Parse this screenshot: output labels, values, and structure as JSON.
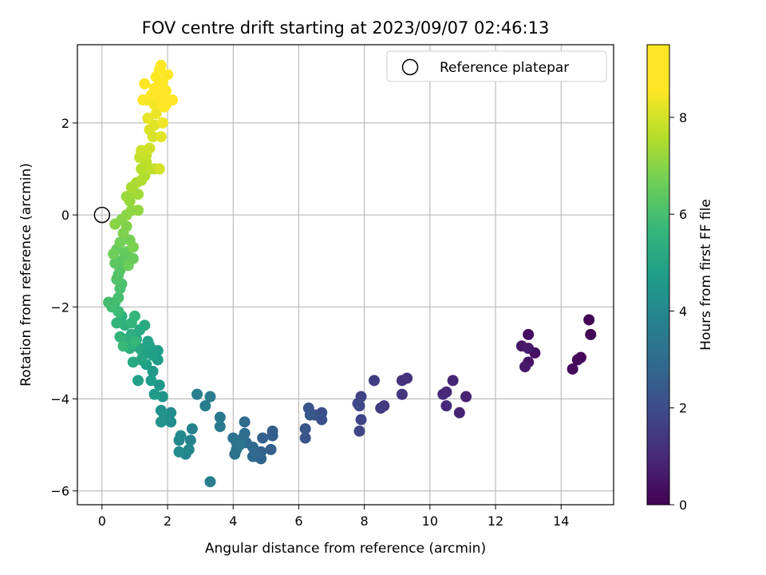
{
  "chart_data": {
    "type": "scatter",
    "title": "FOV centre drift starting at 2023/09/07 02:46:13",
    "xlabel": "Angular distance from reference (arcmin)",
    "ylabel": "Rotation from reference (arcmin)",
    "xlim": [
      -0.75,
      15.6
    ],
    "ylim": [
      -6.3,
      3.7
    ],
    "xticks": [
      0,
      2,
      4,
      6,
      8,
      10,
      12,
      14
    ],
    "yticks": [
      -6,
      -4,
      -2,
      0,
      2
    ],
    "grid": true,
    "legend": {
      "placement": "top-right",
      "entries": [
        "Reference platepar"
      ]
    },
    "reference_point": {
      "x": 0,
      "y": 0
    },
    "colorbar": {
      "label": "Hours from first FF file",
      "range": [
        0,
        9.5
      ],
      "ticks": [
        0,
        2,
        4,
        6,
        8
      ],
      "colormap": "viridis"
    },
    "points": [
      [
        14.85,
        -2.28,
        0.05
      ],
      [
        14.9,
        -2.6,
        0.1
      ],
      [
        14.6,
        -3.1,
        0.15
      ],
      [
        14.5,
        -3.15,
        0.2
      ],
      [
        14.35,
        -3.35,
        0.25
      ],
      [
        13.0,
        -2.6,
        0.35
      ],
      [
        13.2,
        -3.0,
        0.4
      ],
      [
        13.0,
        -3.2,
        0.45
      ],
      [
        12.8,
        -2.85,
        0.5
      ],
      [
        12.9,
        -3.3,
        0.55
      ],
      [
        13.0,
        -2.9,
        0.6
      ],
      [
        11.1,
        -3.95,
        0.8
      ],
      [
        10.9,
        -4.3,
        0.85
      ],
      [
        10.7,
        -3.6,
        0.9
      ],
      [
        10.5,
        -3.85,
        0.95
      ],
      [
        10.5,
        -4.15,
        1.0
      ],
      [
        10.4,
        -3.9,
        1.05
      ],
      [
        9.3,
        -3.55,
        1.25
      ],
      [
        9.15,
        -3.6,
        1.3
      ],
      [
        9.15,
        -3.9,
        1.35
      ],
      [
        8.6,
        -4.15,
        1.45
      ],
      [
        8.5,
        -4.2,
        1.5
      ],
      [
        8.3,
        -3.6,
        1.55
      ],
      [
        7.9,
        -3.95,
        1.7
      ],
      [
        7.9,
        -4.45,
        1.75
      ],
      [
        7.85,
        -4.7,
        1.8
      ],
      [
        7.85,
        -4.15,
        1.85
      ],
      [
        7.8,
        -4.1,
        1.9
      ],
      [
        6.7,
        -4.3,
        2.05
      ],
      [
        6.7,
        -4.45,
        2.1
      ],
      [
        6.5,
        -4.35,
        2.15
      ],
      [
        6.3,
        -4.2,
        2.2
      ],
      [
        6.2,
        -4.85,
        2.25
      ],
      [
        6.2,
        -4.65,
        2.3
      ],
      [
        6.35,
        -4.35,
        2.35
      ],
      [
        5.2,
        -4.7,
        2.5
      ],
      [
        5.2,
        -4.8,
        2.55
      ],
      [
        5.15,
        -5.1,
        2.6
      ],
      [
        4.9,
        -4.85,
        2.65
      ],
      [
        4.85,
        -5.15,
        2.7
      ],
      [
        4.85,
        -5.3,
        2.75
      ],
      [
        4.7,
        -5.25,
        2.8
      ],
      [
        4.6,
        -5.05,
        2.85
      ],
      [
        4.6,
        -5.25,
        2.9
      ],
      [
        4.4,
        -4.95,
        2.95
      ],
      [
        4.35,
        -4.5,
        3.0
      ],
      [
        4.35,
        -4.75,
        3.05
      ],
      [
        4.3,
        -4.85,
        3.1
      ],
      [
        4.1,
        -4.95,
        3.15
      ],
      [
        4.05,
        -5.2,
        3.2
      ],
      [
        4.0,
        -4.85,
        3.25
      ],
      [
        4.1,
        -5.1,
        3.3
      ],
      [
        4.2,
        -5.0,
        3.35
      ],
      [
        3.6,
        -4.4,
        3.45
      ],
      [
        3.6,
        -4.6,
        3.5
      ],
      [
        3.3,
        -3.95,
        3.55
      ],
      [
        3.15,
        -4.15,
        3.6
      ],
      [
        2.9,
        -3.9,
        3.65
      ],
      [
        3.3,
        -5.8,
        3.7
      ],
      [
        2.75,
        -4.65,
        3.8
      ],
      [
        2.7,
        -4.9,
        3.85
      ],
      [
        2.65,
        -5.1,
        3.9
      ],
      [
        2.55,
        -5.2,
        3.95
      ],
      [
        2.4,
        -4.8,
        4.0
      ],
      [
        2.35,
        -4.9,
        4.05
      ],
      [
        2.35,
        -5.15,
        4.1
      ],
      [
        2.1,
        -4.3,
        4.15
      ],
      [
        2.1,
        -4.5,
        4.2
      ],
      [
        1.95,
        -4.45,
        4.25
      ],
      [
        1.9,
        -4.35,
        4.3
      ],
      [
        1.8,
        -4.25,
        4.35
      ],
      [
        1.8,
        -4.5,
        4.4
      ],
      [
        1.85,
        -3.95,
        4.45
      ],
      [
        1.75,
        -3.7,
        4.5
      ],
      [
        1.55,
        -3.4,
        4.55
      ],
      [
        1.6,
        -3.9,
        4.6
      ],
      [
        1.7,
        -3.15,
        4.65
      ],
      [
        1.7,
        -2.95,
        4.7
      ],
      [
        1.5,
        -3.6,
        4.75
      ],
      [
        1.35,
        -3.25,
        4.8
      ],
      [
        1.1,
        -3.6,
        4.85
      ],
      [
        1.45,
        -2.85,
        4.9
      ],
      [
        1.4,
        -2.75,
        4.95
      ],
      [
        1.25,
        -3.0,
        5.0
      ],
      [
        1.2,
        -3.15,
        5.05
      ],
      [
        1.15,
        -2.9,
        5.1
      ],
      [
        1.05,
        -2.7,
        5.15
      ],
      [
        0.95,
        -3.2,
        5.2
      ],
      [
        1.3,
        -2.4,
        5.25
      ],
      [
        1.4,
        -3.0,
        4.87
      ],
      [
        1.55,
        -3.05,
        4.83
      ],
      [
        1.15,
        -2.5,
        5.2
      ],
      [
        0.9,
        -2.6,
        5.3
      ],
      [
        0.85,
        -2.9,
        5.35
      ],
      [
        0.75,
        -2.7,
        5.4
      ],
      [
        0.7,
        -2.4,
        5.45
      ],
      [
        0.6,
        -2.2,
        5.5
      ],
      [
        0.55,
        -2.65,
        5.55
      ],
      [
        0.45,
        -2.35,
        5.6
      ],
      [
        0.9,
        -2.35,
        5.62
      ],
      [
        1.0,
        -2.2,
        5.65
      ],
      [
        1.0,
        -2.75,
        5.7
      ],
      [
        0.65,
        -2.85,
        5.75
      ],
      [
        0.5,
        -2.1,
        5.8
      ],
      [
        0.4,
        -1.9,
        5.85
      ],
      [
        0.3,
        -2.0,
        5.9
      ],
      [
        0.2,
        -1.9,
        5.95
      ],
      [
        0.5,
        -1.8,
        6.0
      ],
      [
        0.55,
        -1.6,
        6.05
      ],
      [
        0.6,
        -1.5,
        6.1
      ],
      [
        0.45,
        -1.4,
        6.15
      ],
      [
        0.5,
        -1.3,
        6.2
      ],
      [
        0.55,
        -1.2,
        6.25
      ],
      [
        0.6,
        -1.0,
        6.3
      ],
      [
        0.4,
        -1.05,
        6.35
      ],
      [
        0.7,
        -0.9,
        6.4
      ],
      [
        0.45,
        -0.75,
        6.45
      ],
      [
        0.75,
        -0.8,
        6.5
      ],
      [
        0.95,
        -0.95,
        6.55
      ],
      [
        0.8,
        -1.1,
        6.6
      ],
      [
        0.35,
        -0.85,
        6.65
      ],
      [
        0.55,
        -0.6,
        6.7
      ],
      [
        0.85,
        -0.55,
        6.75
      ],
      [
        0.95,
        -0.7,
        6.8
      ],
      [
        0.65,
        -0.4,
        6.85
      ],
      [
        0.75,
        -0.25,
        6.9
      ],
      [
        0.6,
        -0.1,
        6.95
      ],
      [
        0.4,
        -0.2,
        7.0
      ],
      [
        0.75,
        0.0,
        7.05
      ],
      [
        0.9,
        0.1,
        7.1
      ],
      [
        1.1,
        0.1,
        7.15
      ],
      [
        0.85,
        0.3,
        7.2
      ],
      [
        0.75,
        0.4,
        7.25
      ],
      [
        0.95,
        0.5,
        7.3
      ],
      [
        1.1,
        0.45,
        7.35
      ],
      [
        0.9,
        0.6,
        7.4
      ],
      [
        1.05,
        0.7,
        7.45
      ],
      [
        1.2,
        0.75,
        7.5
      ],
      [
        1.3,
        0.85,
        7.55
      ],
      [
        1.2,
        1.0,
        7.6
      ],
      [
        1.45,
        1.0,
        7.65
      ],
      [
        1.35,
        1.15,
        7.7
      ],
      [
        1.6,
        1.0,
        7.75
      ],
      [
        1.15,
        1.25,
        7.8
      ],
      [
        1.35,
        1.3,
        7.85
      ],
      [
        1.2,
        1.4,
        7.9
      ],
      [
        1.45,
        1.45,
        7.95
      ],
      [
        1.75,
        1.0,
        8.0
      ],
      [
        1.55,
        1.7,
        8.05
      ],
      [
        1.45,
        1.85,
        8.1
      ],
      [
        1.6,
        1.95,
        8.15
      ],
      [
        1.8,
        1.7,
        8.2
      ],
      [
        1.4,
        2.1,
        8.25
      ],
      [
        1.65,
        2.2,
        8.3
      ],
      [
        1.85,
        2.0,
        8.35
      ],
      [
        1.6,
        2.4,
        8.4
      ],
      [
        1.4,
        2.5,
        8.45
      ],
      [
        1.25,
        2.5,
        8.5
      ],
      [
        1.5,
        2.6,
        8.55
      ],
      [
        1.3,
        2.85,
        8.6
      ],
      [
        1.6,
        2.75,
        8.65
      ],
      [
        1.75,
        2.55,
        8.7
      ],
      [
        1.95,
        2.4,
        8.75
      ],
      [
        2.15,
        2.5,
        8.8
      ],
      [
        1.75,
        2.85,
        8.85
      ],
      [
        1.65,
        3.0,
        8.9
      ],
      [
        1.75,
        3.15,
        8.95
      ],
      [
        1.8,
        3.25,
        9.0
      ],
      [
        1.85,
        2.9,
        9.05
      ],
      [
        2.0,
        3.05,
        9.1
      ],
      [
        1.95,
        2.7,
        9.15
      ],
      [
        1.9,
        2.6,
        9.2
      ],
      [
        1.8,
        2.45,
        9.25
      ],
      [
        1.7,
        2.55,
        9.3
      ],
      [
        1.85,
        2.65,
        9.35
      ],
      [
        1.75,
        2.7,
        9.4
      ],
      [
        1.9,
        2.35,
        9.45
      ]
    ]
  }
}
